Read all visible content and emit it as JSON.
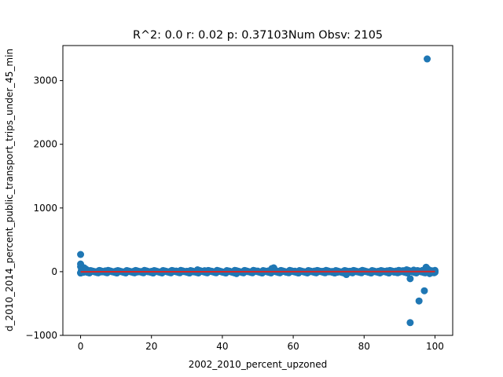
{
  "chart_data": {
    "type": "scatter",
    "title": "R^2: 0.0 r: 0.02 p: 0.37103Num Obsv: 2105",
    "xlabel": "2002_2010_percent_upzoned",
    "ylabel": "d_2010_2014_percent_public_transport_trips_under_45_min",
    "xlim": [
      -5,
      105
    ],
    "ylim": [
      -1000,
      3550
    ],
    "x_ticks": [
      0,
      20,
      40,
      60,
      80,
      100
    ],
    "y_ticks": [
      -1000,
      0,
      1000,
      2000,
      3000
    ],
    "x_tick_labels": [
      "0",
      "20",
      "40",
      "60",
      "80",
      "100"
    ],
    "y_tick_labels": [
      "−1000",
      "0",
      "1000",
      "2000",
      "3000"
    ],
    "grid": false,
    "point_color": "#1f77b4",
    "fit_line_color": "#d62728",
    "fit_line": {
      "x": [
        0,
        100
      ],
      "y": [
        -2,
        2
      ]
    },
    "points": [
      [
        0,
        270
      ],
      [
        0,
        120
      ],
      [
        0,
        80
      ],
      [
        0.3,
        50
      ],
      [
        0.5,
        30
      ],
      [
        0,
        -20
      ],
      [
        0.2,
        10
      ],
      [
        1,
        60
      ],
      [
        1.5,
        40
      ],
      [
        2,
        20
      ],
      [
        0.8,
        -10
      ],
      [
        1.2,
        15
      ],
      [
        2.5,
        -5
      ],
      [
        3,
        10
      ],
      [
        3.5,
        5
      ],
      [
        4,
        0
      ],
      [
        5,
        8
      ],
      [
        6,
        -3
      ],
      [
        7,
        12
      ],
      [
        8,
        4
      ],
      [
        9,
        -2
      ],
      [
        10,
        9
      ],
      [
        11,
        3
      ],
      [
        12,
        -4
      ],
      [
        13,
        7
      ],
      [
        14,
        1
      ],
      [
        15,
        6
      ],
      [
        16,
        -5
      ],
      [
        17,
        2
      ],
      [
        18,
        8
      ],
      [
        19,
        -1
      ],
      [
        20,
        5
      ],
      [
        21,
        12
      ],
      [
        22,
        -3
      ],
      [
        23,
        4
      ],
      [
        24,
        7
      ],
      [
        25,
        -2
      ],
      [
        26,
        3
      ],
      [
        27,
        9
      ],
      [
        28,
        -4
      ],
      [
        29,
        2
      ],
      [
        30,
        6
      ],
      [
        31,
        10
      ],
      [
        32,
        -3
      ],
      [
        33,
        30
      ],
      [
        34,
        5
      ],
      [
        35,
        15
      ],
      [
        36,
        -2
      ],
      [
        37,
        7
      ],
      [
        38,
        1
      ],
      [
        39,
        4
      ],
      [
        40,
        -6
      ],
      [
        41,
        3
      ],
      [
        42,
        8
      ],
      [
        43,
        -1
      ],
      [
        43.5,
        20
      ],
      [
        44,
        -30
      ],
      [
        46,
        5
      ],
      [
        47,
        2
      ],
      [
        48,
        -4
      ],
      [
        49,
        6
      ],
      [
        50,
        9
      ],
      [
        51,
        -2
      ],
      [
        52,
        3
      ],
      [
        53,
        12
      ],
      [
        54,
        50
      ],
      [
        54.5,
        60
      ],
      [
        55,
        20
      ],
      [
        56,
        -3
      ],
      [
        57,
        4
      ],
      [
        58,
        -8
      ],
      [
        59,
        6
      ],
      [
        60,
        2
      ],
      [
        61,
        -5
      ],
      [
        62,
        8
      ],
      [
        63,
        1
      ],
      [
        64,
        -4
      ],
      [
        65,
        5
      ],
      [
        66,
        10
      ],
      [
        67,
        -2
      ],
      [
        68,
        3
      ],
      [
        69,
        7
      ],
      [
        70,
        -3
      ],
      [
        71,
        4
      ],
      [
        72,
        9
      ],
      [
        73,
        -1
      ],
      [
        74,
        2
      ],
      [
        75,
        -45
      ],
      [
        76,
        6
      ],
      [
        77,
        3
      ],
      [
        78,
        -2
      ],
      [
        79,
        8
      ],
      [
        80,
        4
      ],
      [
        81,
        -3
      ],
      [
        82,
        5
      ],
      [
        83,
        2
      ],
      [
        84,
        7
      ],
      [
        85,
        -4
      ],
      [
        86,
        3
      ],
      [
        87,
        -20
      ],
      [
        88,
        6
      ],
      [
        89,
        10
      ],
      [
        90,
        -6
      ],
      [
        91,
        15
      ],
      [
        92,
        30
      ],
      [
        92.5,
        20
      ],
      [
        93,
        -110
      ],
      [
        93,
        -800
      ],
      [
        94,
        25
      ],
      [
        95,
        10
      ],
      [
        95.5,
        -460
      ],
      [
        96,
        0
      ],
      [
        97,
        -300
      ],
      [
        97.5,
        70
      ],
      [
        97.8,
        3340
      ],
      [
        98,
        40
      ],
      [
        98.5,
        -30
      ],
      [
        99,
        15
      ],
      [
        99.5,
        5
      ],
      [
        100,
        -10
      ],
      [
        100,
        0
      ],
      [
        100,
        8
      ],
      [
        99.8,
        -5
      ],
      [
        96.5,
        20
      ],
      [
        94.5,
        -15
      ],
      [
        90.5,
        5
      ],
      [
        88.5,
        -8
      ],
      [
        86.5,
        12
      ],
      [
        84.5,
        -6
      ],
      [
        82.5,
        9
      ],
      [
        78.5,
        -7
      ],
      [
        76.5,
        4
      ],
      [
        72.5,
        -9
      ],
      [
        68.5,
        6
      ],
      [
        64.5,
        -3
      ],
      [
        60.5,
        8
      ],
      [
        56.5,
        -6
      ],
      [
        52.5,
        4
      ],
      [
        48.5,
        -7
      ],
      [
        46.5,
        10
      ]
    ]
  }
}
